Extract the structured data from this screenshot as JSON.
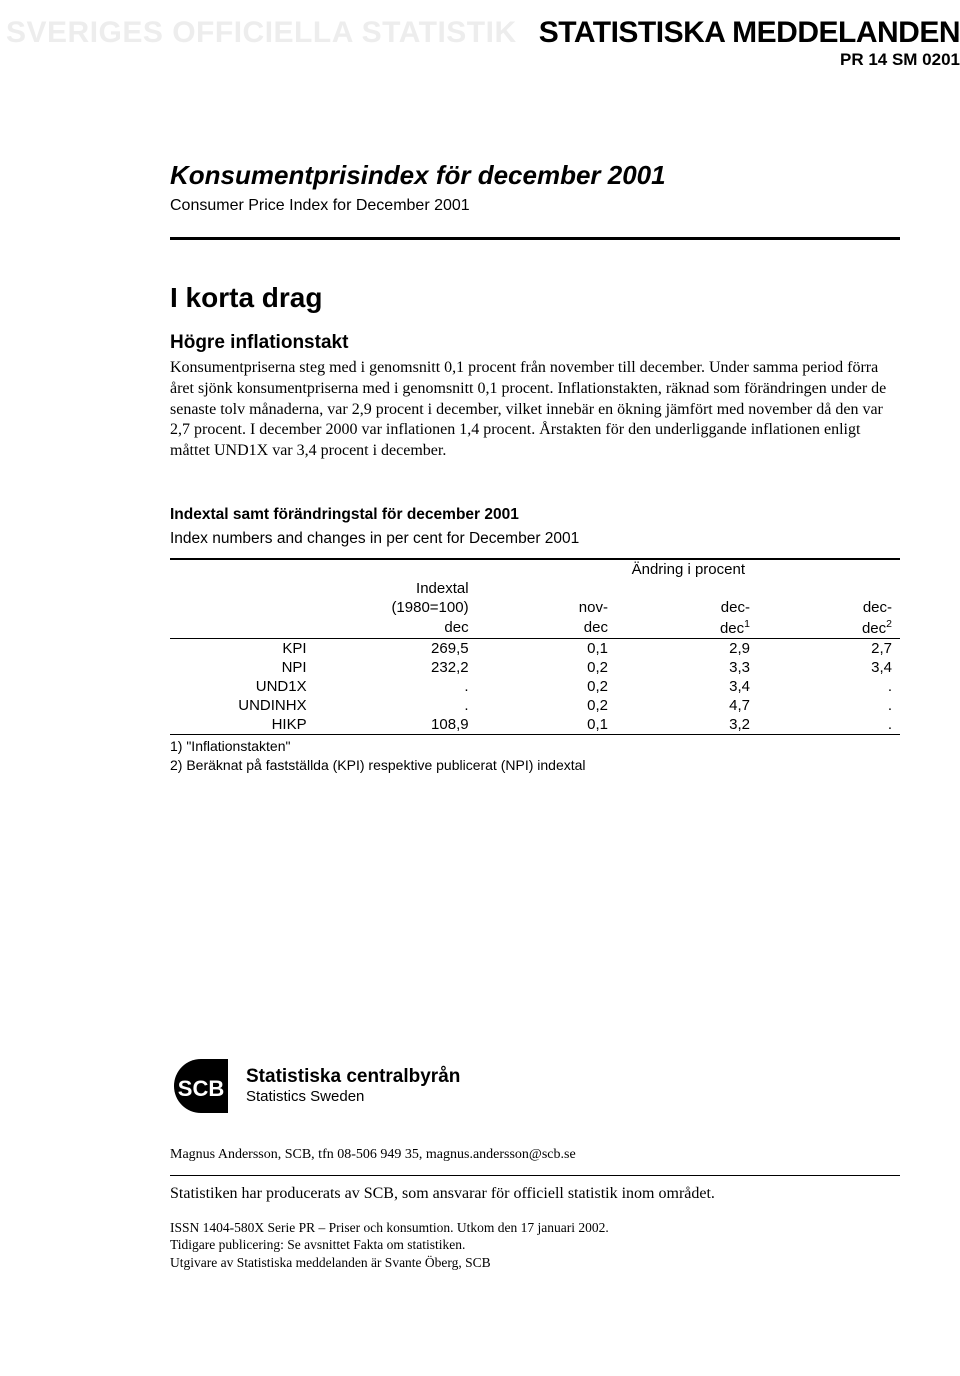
{
  "banner": {
    "left": "SVERIGES OFFICIELLA STATISTIK",
    "right": "STATISTISKA MEDDELANDEN",
    "pubcode": "PR 14 SM 0201"
  },
  "title": {
    "sv": "Konsumentprisindex för december 2001",
    "en": "Consumer Price Index for December 2001"
  },
  "section": {
    "head": "I korta drag"
  },
  "para": {
    "head": "Högre inflationstakt",
    "body": "Konsumentpriserna steg med i genomsnitt 0,1 procent från november till december. Under samma period förra året sjönk konsumentpriserna med i genomsnitt 0,1 procent. Inflationstakten, räknad som förändringen under de senaste tolv månaderna, var 2,9 procent i december, vilket innebär en ökning jämfört med november då den var 2,7 procent. I december 2000 var inflationen 1,4 procent. Årstakten för den underliggande inflationen enligt måttet UND1X var 3,4 procent i december."
  },
  "table": {
    "title_sv": "Indextal samt förändringstal för december 2001",
    "title_en": "Index numbers and changes in per cent for December 2001",
    "header": {
      "col_index_l1": "Indextal",
      "col_index_l2": "(1980=100)",
      "col_index_l3": "dec",
      "group": "Ändring i procent",
      "c1_l1": "nov-",
      "c1_l2": "dec",
      "c2_l1": "dec-",
      "c2_l2_pre": "dec",
      "c2_sup": "1",
      "c3_l1": "dec-",
      "c3_l2_pre": "dec",
      "c3_sup": "2"
    },
    "rows": [
      {
        "label": "KPI",
        "index": "269,5",
        "c1": "0,1",
        "c2": "2,9",
        "c3": "2,7"
      },
      {
        "label": "NPI",
        "index": "232,2",
        "c1": "0,2",
        "c2": "3,3",
        "c3": "3,4"
      },
      {
        "label": "UND1X",
        "index": ".",
        "c1": "0,2",
        "c2": "3,4",
        "c3": "."
      },
      {
        "label": "UNDINHX",
        "index": ".",
        "c1": "0,2",
        "c2": "4,7",
        "c3": "."
      },
      {
        "label": "HIKP",
        "index": "108,9",
        "c1": "0,1",
        "c2": "3,2",
        "c3": "."
      }
    ],
    "footnotes": [
      "1) \"Inflationstakten\"",
      "2) Beräknat på fastställda (KPI) respektive publicerat (NPI) indextal"
    ]
  },
  "logo": {
    "name_sv": "Statistiska centralbyrån",
    "name_en": "Statistics Sweden",
    "abbr": "SCB"
  },
  "contact": "Magnus Andersson, SCB, tfn 08-506 949 35, magnus.andersson@scb.se",
  "producer": "Statistiken har producerats av SCB, som ansvarar för officiell statistik inom området.",
  "issn": {
    "l1": "ISSN 1404-580X  Serie PR – Priser och konsumtion. Utkom den 17 januari 2002.",
    "l2": "Tidigare publicering: Se avsnittet Fakta om statistiken.",
    "l3": "Utgivare av Statistiska meddelanden är Svante Öberg, SCB"
  }
}
